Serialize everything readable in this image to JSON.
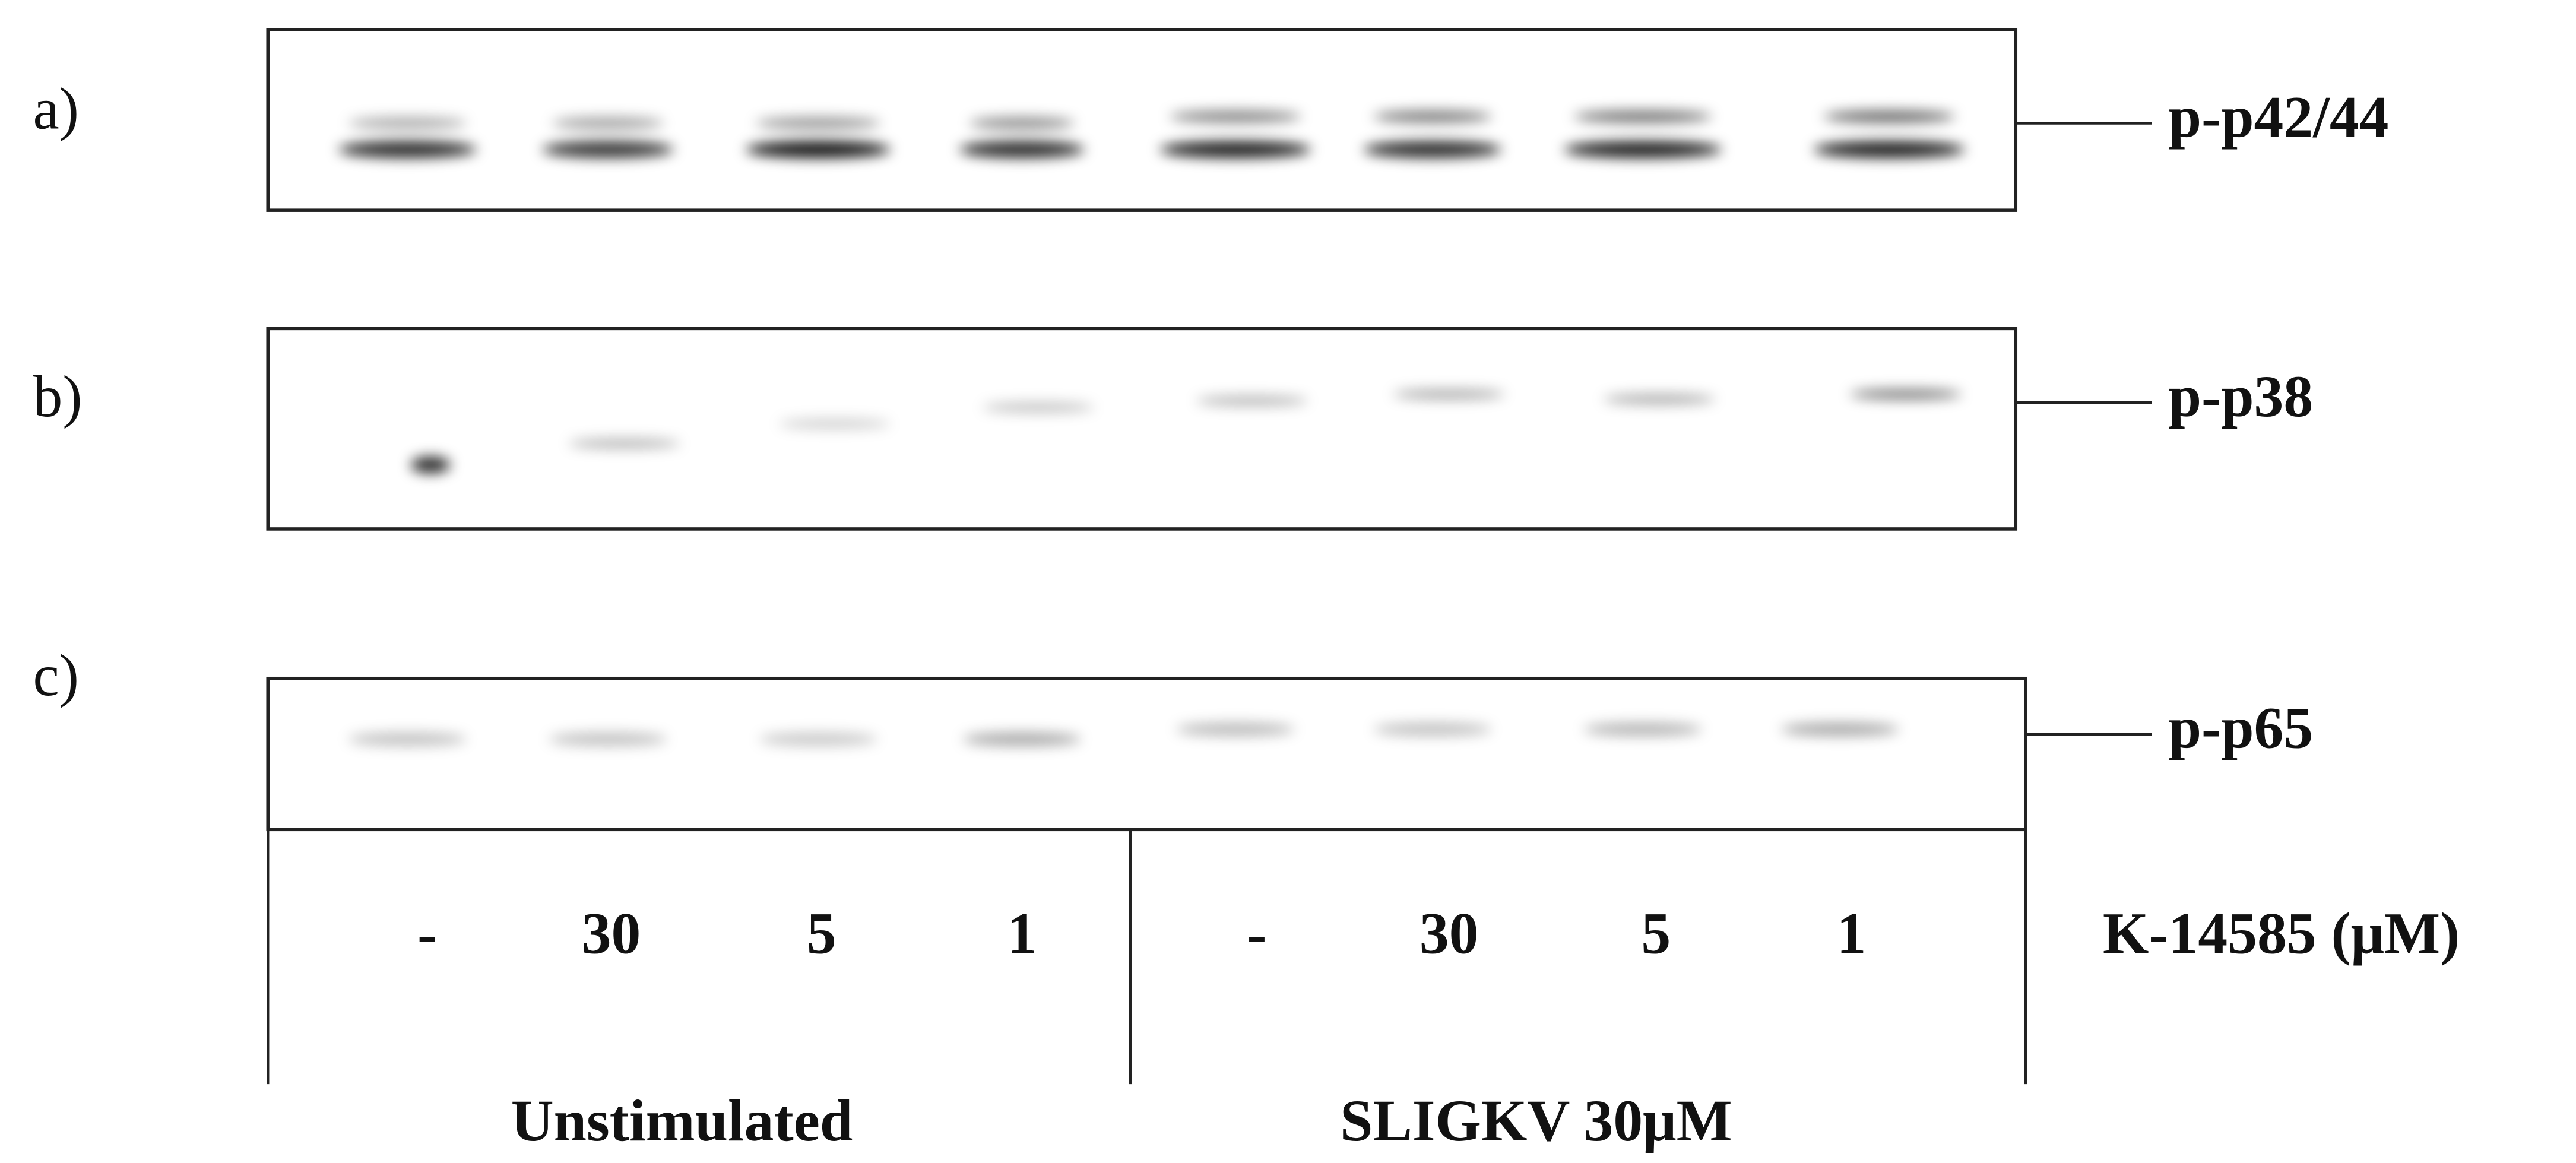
{
  "panels": [
    {
      "label": "a)",
      "marker": "p-p42/44"
    },
    {
      "label": "b)",
      "marker": "p-p38"
    },
    {
      "label": "c)",
      "marker": "p-p65"
    }
  ],
  "lanes": [
    "-",
    "30",
    "5",
    "1",
    "-",
    "30",
    "5",
    "1"
  ],
  "treatment_label": "K-14585 (μM)",
  "groups": [
    "Unstimulated",
    "SLIGKV 30μM"
  ]
}
